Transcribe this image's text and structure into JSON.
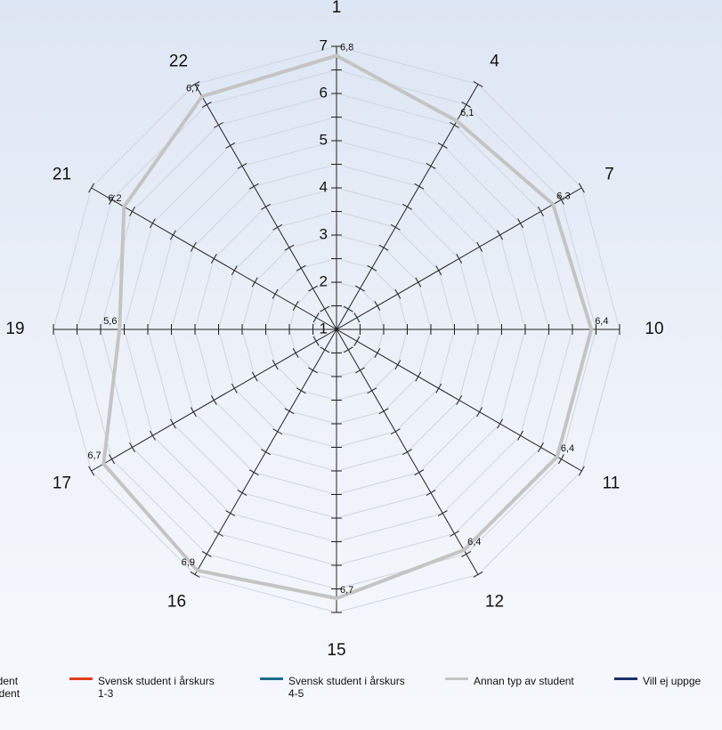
{
  "chart_data": {
    "type": "radar",
    "axes": [
      "1",
      "4",
      "7",
      "10",
      "11",
      "12",
      "15",
      "16",
      "17",
      "19",
      "21",
      "22"
    ],
    "scale": {
      "min": 1,
      "max": 7,
      "ticks": [
        "1",
        "2",
        "3",
        "4",
        "5",
        "6",
        "7"
      ]
    },
    "series": [
      {
        "name": "Annan typ av student",
        "color": "#c4c4c4",
        "values": [
          6.8,
          6.1,
          6.3,
          6.4,
          6.4,
          6.4,
          6.7,
          6.9,
          6.7,
          5.6,
          6.2,
          6.7
        ],
        "labels": [
          "6,8",
          "6,1",
          "6,3",
          "6,4",
          "6,4",
          "6,4",
          "6,7",
          "6,9",
          "6,7",
          "5,6",
          "6,2",
          "6,7"
        ]
      }
    ],
    "legend": [
      {
        "lines": [
          "erstudent",
          "esstudent"
        ],
        "color": ""
      },
      {
        "lines": [
          "Svensk student i årskurs",
          "1-3"
        ],
        "color": "#e0401a"
      },
      {
        "lines": [
          "Svensk student i årskurs",
          "4-5"
        ],
        "color": "#1a6a8c"
      },
      {
        "lines": [
          "Annan typ av student"
        ],
        "color": "#c4c4c4"
      },
      {
        "lines": [
          "Vill ej uppge"
        ],
        "color": "#1a2e6a"
      }
    ],
    "grid": true,
    "legend_position": "bottom"
  }
}
